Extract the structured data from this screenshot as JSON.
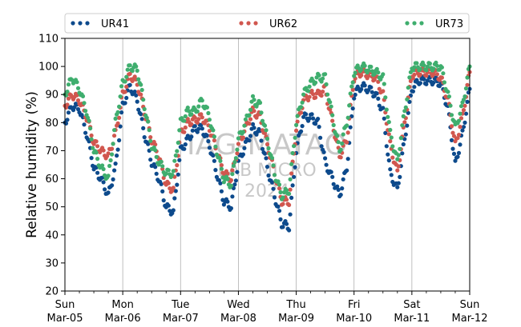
{
  "chart_data": {
    "type": "scatter",
    "title": "",
    "xlabel": "",
    "ylabel": "Relative humidity (%)",
    "ylim": [
      20,
      110
    ],
    "yticks": [
      20,
      30,
      40,
      50,
      60,
      70,
      80,
      90,
      100,
      110
    ],
    "xlim": [
      "2023-03-05 00:00",
      "2023-03-12 00:00"
    ],
    "xticks": [
      {
        "date": "2023-03-05",
        "day": "Sun",
        "label": "Mar-05"
      },
      {
        "date": "2023-03-06",
        "day": "Mon",
        "label": "Mar-06"
      },
      {
        "date": "2023-03-07",
        "day": "Tue",
        "label": "Mar-07"
      },
      {
        "date": "2023-03-08",
        "day": "Wed",
        "label": "Mar-08"
      },
      {
        "date": "2023-03-09",
        "day": "Thu",
        "label": "Mar-09"
      },
      {
        "date": "2023-03-10",
        "day": "Fri",
        "label": "Mar-10"
      },
      {
        "date": "2023-03-11",
        "day": "Sat",
        "label": "Mar-11"
      },
      {
        "date": "2023-03-12",
        "day": "Sun",
        "label": "Mar-12"
      }
    ],
    "grid": "vertical",
    "legend_position": "top",
    "series": [
      {
        "name": "UR41",
        "color": "#0d4a8c",
        "x": [
          "2023-03-05 00:00",
          "2023-03-05 03:00",
          "2023-03-05 06:00",
          "2023-03-05 09:00",
          "2023-03-05 12:00",
          "2023-03-05 15:00",
          "2023-03-05 18:00",
          "2023-03-05 21:00",
          "2023-03-06 00:00",
          "2023-03-06 03:00",
          "2023-03-06 06:00",
          "2023-03-06 09:00",
          "2023-03-06 12:00",
          "2023-03-06 15:00",
          "2023-03-06 18:00",
          "2023-03-06 21:00",
          "2023-03-07 00:00",
          "2023-03-07 03:00",
          "2023-03-07 06:00",
          "2023-03-07 09:00",
          "2023-03-07 12:00",
          "2023-03-07 15:00",
          "2023-03-07 18:00",
          "2023-03-07 21:00",
          "2023-03-08 00:00",
          "2023-03-08 03:00",
          "2023-03-08 06:00",
          "2023-03-08 09:00",
          "2023-03-08 12:00",
          "2023-03-08 15:00",
          "2023-03-08 18:00",
          "2023-03-08 21:00",
          "2023-03-09 00:00",
          "2023-03-09 03:00",
          "2023-03-09 06:00",
          "2023-03-09 09:00",
          "2023-03-09 12:00",
          "2023-03-09 15:00",
          "2023-03-09 18:00",
          "2023-03-09 21:00",
          "2023-03-10 00:00",
          "2023-03-10 03:00",
          "2023-03-10 06:00",
          "2023-03-10 09:00",
          "2023-03-10 12:00",
          "2023-03-10 15:00",
          "2023-03-10 18:00",
          "2023-03-10 21:00",
          "2023-03-11 00:00",
          "2023-03-11 03:00",
          "2023-03-11 06:00",
          "2023-03-11 09:00",
          "2023-03-11 12:00",
          "2023-03-11 15:00",
          "2023-03-11 18:00",
          "2023-03-11 21:00",
          "2023-03-12 00:00"
        ],
        "y": [
          80,
          86,
          85,
          76,
          64,
          60,
          54,
          64,
          86,
          93,
          88,
          76,
          66,
          60,
          50,
          48,
          70,
          74,
          78,
          78,
          72,
          62,
          52,
          50,
          66,
          72,
          78,
          76,
          64,
          54,
          44,
          43,
          70,
          82,
          82,
          80,
          66,
          60,
          54,
          64,
          90,
          93,
          92,
          90,
          84,
          62,
          56,
          74,
          92,
          95,
          95,
          95,
          94,
          85,
          65,
          76,
          92
        ]
      },
      {
        "name": "UR62",
        "color": "#d1574f",
        "x": [
          "2023-03-05 00:00",
          "2023-03-05 03:00",
          "2023-03-05 06:00",
          "2023-03-05 09:00",
          "2023-03-05 12:00",
          "2023-03-05 15:00",
          "2023-03-05 18:00",
          "2023-03-05 21:00",
          "2023-03-06 00:00",
          "2023-03-06 03:00",
          "2023-03-06 06:00",
          "2023-03-06 09:00",
          "2023-03-06 12:00",
          "2023-03-06 15:00",
          "2023-03-06 18:00",
          "2023-03-06 21:00",
          "2023-03-07 00:00",
          "2023-03-07 03:00",
          "2023-03-07 06:00",
          "2023-03-07 09:00",
          "2023-03-07 12:00",
          "2023-03-07 15:00",
          "2023-03-07 18:00",
          "2023-03-07 21:00",
          "2023-03-08 00:00",
          "2023-03-08 03:00",
          "2023-03-08 06:00",
          "2023-03-08 09:00",
          "2023-03-08 12:00",
          "2023-03-08 15:00",
          "2023-03-08 18:00",
          "2023-03-08 21:00",
          "2023-03-09 00:00",
          "2023-03-09 03:00",
          "2023-03-09 06:00",
          "2023-03-09 09:00",
          "2023-03-09 12:00",
          "2023-03-09 15:00",
          "2023-03-09 18:00",
          "2023-03-09 21:00",
          "2023-03-10 00:00",
          "2023-03-10 03:00",
          "2023-03-10 06:00",
          "2023-03-10 09:00",
          "2023-03-10 12:00",
          "2023-03-10 15:00",
          "2023-03-10 18:00",
          "2023-03-10 21:00",
          "2023-03-11 00:00",
          "2023-03-11 03:00",
          "2023-03-11 06:00",
          "2023-03-11 09:00",
          "2023-03-11 12:00",
          "2023-03-11 15:00",
          "2023-03-11 18:00",
          "2023-03-11 21:00",
          "2023-03-12 00:00"
        ],
        "y": [
          86,
          90,
          88,
          82,
          73,
          70,
          68,
          76,
          90,
          97,
          94,
          84,
          74,
          68,
          58,
          56,
          76,
          80,
          81,
          82,
          78,
          70,
          62,
          60,
          72,
          78,
          84,
          82,
          72,
          62,
          52,
          52,
          78,
          88,
          90,
          90,
          92,
          80,
          68,
          74,
          96,
          98,
          97,
          96,
          90,
          72,
          62,
          80,
          97,
          98,
          98,
          98,
          96,
          88,
          72,
          82,
          98
        ]
      },
      {
        "name": "UR73",
        "color": "#3fae6e",
        "x": [
          "2023-03-05 00:00",
          "2023-03-05 03:00",
          "2023-03-05 06:00",
          "2023-03-05 09:00",
          "2023-03-05 12:00",
          "2023-03-05 15:00",
          "2023-03-05 18:00",
          "2023-03-05 21:00",
          "2023-03-06 00:00",
          "2023-03-06 03:00",
          "2023-03-06 06:00",
          "2023-03-06 09:00",
          "2023-03-06 12:00",
          "2023-03-06 15:00",
          "2023-03-06 18:00",
          "2023-03-06 21:00",
          "2023-03-07 00:00",
          "2023-03-07 03:00",
          "2023-03-07 06:00",
          "2023-03-07 09:00",
          "2023-03-07 12:00",
          "2023-03-07 15:00",
          "2023-03-07 18:00",
          "2023-03-07 21:00",
          "2023-03-08 00:00",
          "2023-03-08 03:00",
          "2023-03-08 06:00",
          "2023-03-08 09:00",
          "2023-03-08 12:00",
          "2023-03-08 15:00",
          "2023-03-08 18:00",
          "2023-03-08 21:00",
          "2023-03-09 00:00",
          "2023-03-09 03:00",
          "2023-03-09 06:00",
          "2023-03-09 09:00",
          "2023-03-09 12:00",
          "2023-03-09 15:00",
          "2023-03-09 18:00",
          "2023-03-09 21:00",
          "2023-03-10 00:00",
          "2023-03-10 03:00",
          "2023-03-10 06:00",
          "2023-03-10 09:00",
          "2023-03-10 12:00",
          "2023-03-10 15:00",
          "2023-03-10 18:00",
          "2023-03-10 21:00",
          "2023-03-11 00:00",
          "2023-03-11 03:00",
          "2023-03-11 06:00",
          "2023-03-11 09:00",
          "2023-03-11 12:00",
          "2023-03-11 15:00",
          "2023-03-11 18:00",
          "2023-03-11 21:00",
          "2023-03-12 00:00"
        ],
        "y": [
          90,
          96,
          92,
          84,
          70,
          64,
          60,
          80,
          94,
          100,
          99,
          86,
          72,
          66,
          62,
          62,
          80,
          84,
          84,
          88,
          82,
          70,
          60,
          58,
          74,
          80,
          88,
          86,
          74,
          62,
          54,
          56,
          80,
          90,
          94,
          96,
          96,
          82,
          70,
          80,
          98,
          100,
          99,
          98,
          96,
          76,
          66,
          84,
          100,
          100,
          100,
          100,
          100,
          90,
          78,
          86,
          100
        ]
      }
    ]
  },
  "watermark": {
    "line1": "IAG-MATAO",
    "line2": "LAB MICRO",
    "line3": "2024"
  }
}
